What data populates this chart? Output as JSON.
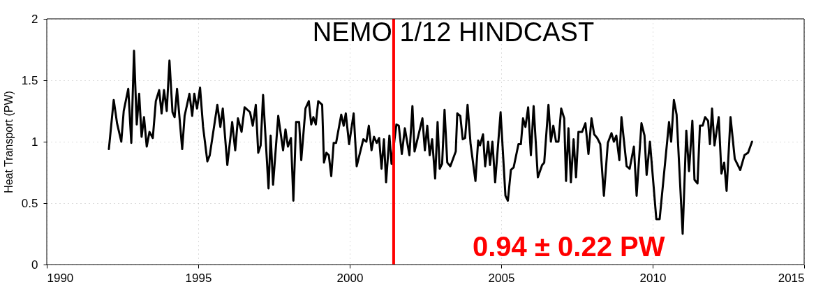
{
  "chart_data": {
    "type": "line",
    "title": "NEMO 1/12 HINDCAST",
    "ylabel": "Heat Transport (PW)",
    "annotations": [
      "0.94 ± 0.22 PW"
    ],
    "xlim": [
      1990,
      2015
    ],
    "xticks": [
      1990,
      1995,
      2000,
      2005,
      2010,
      2015
    ],
    "ylim": [
      0,
      2
    ],
    "yticks": [
      0,
      0.5,
      1,
      1.5,
      2
    ],
    "grid": true,
    "line_style": "solid",
    "ref_lines": [
      {
        "axis": "x",
        "value": 2001.45,
        "color": "#ff0000"
      }
    ],
    "x": [
      1992.05,
      1992.21,
      1992.32,
      1992.46,
      1992.54,
      1992.69,
      1992.79,
      1992.88,
      1992.97,
      1993.05,
      1993.13,
      1993.21,
      1993.3,
      1993.39,
      1993.5,
      1993.6,
      1993.71,
      1993.79,
      1993.87,
      1993.96,
      1994.05,
      1994.15,
      1994.22,
      1994.3,
      1994.47,
      1994.55,
      1994.71,
      1994.8,
      1994.87,
      1994.96,
      1995.06,
      1995.16,
      1995.3,
      1995.38,
      1995.63,
      1995.73,
      1995.81,
      1995.96,
      1996.12,
      1996.22,
      1996.31,
      1996.43,
      1996.53,
      1996.71,
      1996.8,
      1996.9,
      1996.98,
      1997.06,
      1997.14,
      1997.32,
      1997.39,
      1997.47,
      1997.64,
      1997.8,
      1997.88,
      1997.96,
      1998.06,
      1998.14,
      1998.23,
      1998.33,
      1998.4,
      1998.54,
      1998.65,
      1998.73,
      1998.8,
      1998.88,
      1998.96,
      1999.09,
      1999.15,
      1999.23,
      1999.31,
      1999.39,
      1999.47,
      1999.55,
      1999.72,
      1999.8,
      1999.87,
      1999.98,
      2000.13,
      2000.23,
      2000.45,
      2000.55,
      2000.63,
      2000.72,
      2000.8,
      2000.89,
      2000.97,
      2001.05,
      2001.13,
      2001.2,
      2001.31,
      2001.38,
      2001.54,
      2001.62,
      2001.72,
      2001.82,
      2001.97,
      2002.07,
      2002.14,
      2002.4,
      2002.48,
      2002.56,
      2002.64,
      2002.72,
      2002.82,
      2002.9,
      2002.97,
      2003.05,
      2003.13,
      2003.22,
      2003.32,
      2003.5,
      2003.55,
      2003.65,
      2003.73,
      2003.81,
      2003.89,
      2003.99,
      2004.15,
      2004.24,
      2004.3,
      2004.4,
      2004.47,
      2004.57,
      2004.63,
      2004.71,
      2004.8,
      2004.98,
      2005.14,
      2005.22,
      2005.32,
      2005.41,
      2005.57,
      2005.65,
      2005.72,
      2005.8,
      2005.89,
      2005.98,
      2006.07,
      2006.21,
      2006.35,
      2006.42,
      2006.56,
      2006.64,
      2006.72,
      2006.81,
      2006.89,
      2006.98,
      2007.08,
      2007.14,
      2007.22,
      2007.3,
      2007.39,
      2007.47,
      2007.55,
      2007.67,
      2007.78,
      2007.88,
      2007.98,
      2008.07,
      2008.17,
      2008.27,
      2008.39,
      2008.52,
      2008.64,
      2008.72,
      2008.8,
      2008.9,
      2008.97,
      2009.14,
      2009.24,
      2009.38,
      2009.47,
      2009.63,
      2009.73,
      2009.8,
      2009.91,
      2010.12,
      2010.23,
      2010.54,
      2010.61,
      2010.7,
      2010.79,
      2010.99,
      2011.11,
      2011.2,
      2011.31,
      2011.38,
      2011.48,
      2011.56,
      2011.65,
      2011.73,
      2011.83,
      2011.89,
      2011.96,
      2012.04,
      2012.18,
      2012.27,
      2012.36,
      2012.44,
      2012.57,
      2012.71,
      2012.89,
      2013.03,
      2013.15,
      2013.28
    ],
    "series": [
      {
        "color": "#000000",
        "values": [
          0.94,
          1.34,
          1.15,
          1.0,
          1.25,
          1.43,
          0.99,
          1.74,
          1.14,
          1.39,
          1.04,
          1.2,
          0.96,
          1.08,
          1.03,
          1.33,
          1.42,
          1.23,
          1.42,
          1.25,
          1.66,
          1.24,
          1.2,
          1.43,
          0.94,
          1.21,
          1.39,
          1.21,
          1.39,
          1.27,
          1.44,
          1.12,
          0.84,
          0.89,
          1.3,
          1.12,
          1.27,
          0.81,
          1.16,
          0.93,
          1.19,
          1.08,
          1.28,
          1.24,
          1.13,
          1.3,
          0.91,
          0.97,
          1.38,
          0.62,
          1.05,
          0.65,
          1.21,
          0.93,
          1.1,
          0.96,
          1.03,
          0.52,
          1.16,
          1.16,
          0.85,
          1.27,
          1.33,
          1.14,
          1.2,
          1.14,
          1.33,
          1.3,
          0.83,
          0.91,
          0.89,
          0.72,
          0.99,
          0.99,
          1.22,
          1.13,
          1.23,
          0.98,
          1.23,
          0.8,
          1.02,
          1.0,
          1.13,
          0.93,
          1.04,
          0.99,
          1.03,
          0.78,
          1.02,
          0.67,
          1.05,
          0.82,
          1.14,
          1.13,
          0.9,
          1.11,
          0.89,
          1.29,
          0.92,
          1.19,
          0.93,
          1.13,
          0.89,
          1.02,
          0.7,
          1.16,
          0.78,
          0.82,
          1.26,
          0.83,
          0.8,
          0.92,
          1.23,
          1.21,
          1.02,
          1.03,
          1.3,
          0.98,
          0.68,
          1.01,
          0.97,
          1.06,
          0.8,
          1.0,
          0.81,
          1.0,
          0.67,
          1.24,
          0.56,
          0.52,
          0.77,
          0.79,
          0.98,
          0.98,
          1.19,
          1.12,
          1.28,
          0.89,
          1.29,
          0.71,
          0.81,
          0.83,
          1.3,
          1.0,
          1.13,
          1.0,
          1.0,
          1.27,
          1.19,
          0.68,
          1.11,
          0.67,
          1.02,
          0.71,
          1.08,
          1.08,
          1.15,
          0.9,
          1.19,
          1.06,
          1.03,
          0.98,
          0.56,
          0.99,
          1.07,
          1.0,
          1.05,
          0.85,
          1.2,
          0.8,
          0.78,
          0.96,
          0.56,
          1.15,
          1.05,
          0.73,
          1.0,
          0.37,
          0.37,
          1.16,
          1.0,
          1.34,
          1.22,
          0.25,
          1.09,
          0.76,
          1.17,
          0.69,
          0.66,
          1.13,
          1.13,
          1.2,
          1.17,
          0.98,
          1.27,
          0.97,
          1.2,
          0.74,
          0.83,
          0.6,
          1.2,
          0.86,
          0.77,
          0.89,
          0.91,
          1.0
        ]
      }
    ]
  }
}
